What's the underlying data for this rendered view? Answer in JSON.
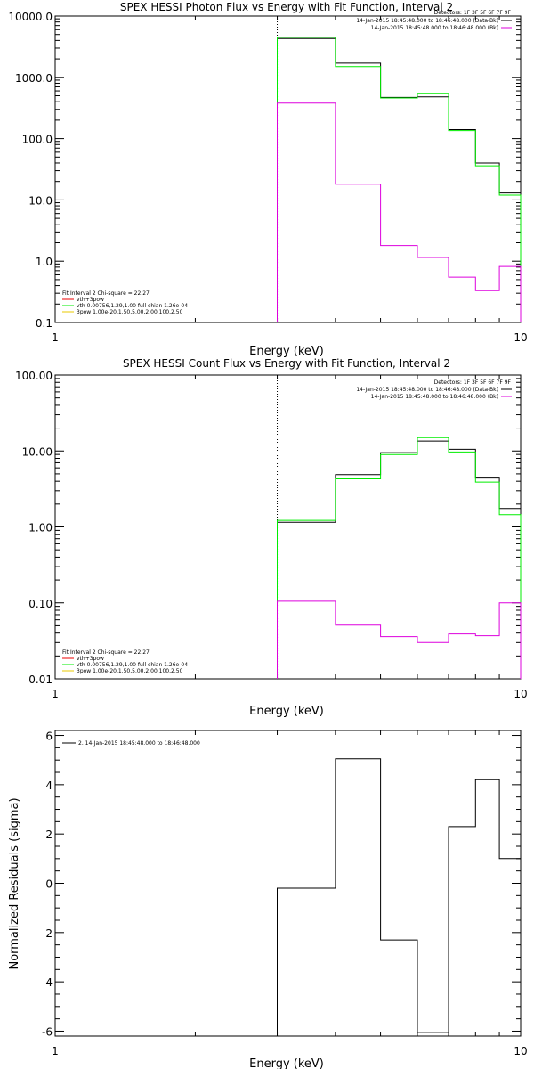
{
  "colors": {
    "black": "#000000",
    "green": "#00ee00",
    "magenta": "#dd00dd",
    "red": "#ee0000",
    "yellow": "#e8c800"
  },
  "chart_data": [
    {
      "type": "line",
      "title": "SPEX HESSI Photon Flux vs Energy with Fit Function, Interval 2",
      "xlabel": "Energy (keV)",
      "ylabel": "",
      "xscale": "log",
      "yscale": "log",
      "xlim": [
        1,
        10
      ],
      "ylim": [
        0.1,
        10000
      ],
      "xticklabels": [
        "1",
        "10"
      ],
      "yticks": [
        0.1,
        1,
        10,
        100,
        1000,
        10000
      ],
      "yticklabels": [
        "0.1",
        "1.0",
        "10.0",
        "100.0",
        "1000.0",
        "10000.0"
      ],
      "vline_x": 3,
      "legend_top": {
        "line1": "Detectors: 1F 3F 5F 6F 7F 9F",
        "entries": [
          {
            "text": "14-Jan-2015 18:45:48.000 to 18:46:48.000 (Data-Bk)",
            "color": "#000000"
          },
          {
            "text": "14-Jan-2015 18:45:48.000 to 18:46:48.000 (Bk)",
            "color": "#dd00dd"
          }
        ]
      },
      "legend_bottom": {
        "header": "Fit Interval 2   Chi-square = 22.27",
        "entries": [
          {
            "text": "vth+3pow",
            "color": "#ee0000"
          },
          {
            "text": "vth 0.00756,1.29,1.00  full chian 1.26e-04",
            "color": "#00ee00"
          },
          {
            "text": "3pow 1.00e-20,1.50,5.00,2.00,100,2.50",
            "color": "#e8c800"
          }
        ]
      },
      "series": [
        {
          "color": "#000000",
          "edges": [
            3,
            4,
            5,
            6,
            7,
            8,
            9,
            10
          ],
          "values": [
            4300,
            1700,
            470,
            480,
            140,
            40,
            13
          ]
        },
        {
          "color": "#00ee00",
          "edges": [
            3,
            4,
            5,
            6,
            7,
            8,
            9,
            10
          ],
          "values": [
            4500,
            1500,
            460,
            550,
            135,
            36,
            12
          ]
        },
        {
          "color": "#dd00dd",
          "edges": [
            3,
            4,
            5,
            6,
            7,
            8,
            9,
            10
          ],
          "values": [
            380,
            18,
            1.8,
            1.15,
            0.55,
            0.33,
            0.82
          ]
        }
      ]
    },
    {
      "type": "line",
      "title": "SPEX HESSI Count Flux vs Energy with Fit Function, Interval 2",
      "xlabel": "Energy (keV)",
      "ylabel": "",
      "xscale": "log",
      "yscale": "log",
      "xlim": [
        1,
        10
      ],
      "ylim": [
        0.01,
        100
      ],
      "xticklabels": [
        "1",
        "10"
      ],
      "yticks": [
        0.01,
        0.1,
        1,
        10,
        100
      ],
      "yticklabels": [
        "0.01",
        "0.10",
        "1.00",
        "10.00",
        "100.00"
      ],
      "vline_x": 3,
      "legend_top": {
        "line1": "Detectors: 1F 3F 5F 6F 7F 9F",
        "entries": [
          {
            "text": "14-Jan-2015 18:45:48.000 to 18:46:48.000 (Data-Bk)",
            "color": "#000000"
          },
          {
            "text": "14-Jan-2015 18:45:48.000 to 18:46:48.000 (Bk)",
            "color": "#dd00dd"
          }
        ]
      },
      "legend_bottom": {
        "header": "Fit Interval 2   Chi-square = 22.27",
        "entries": [
          {
            "text": "vth+3pow",
            "color": "#ee0000"
          },
          {
            "text": "vth 0.00756,1.29,1.00  full chian 1.26e-04",
            "color": "#00ee00"
          },
          {
            "text": "3pow 1.00e-20,1.50,5.00,2.00,100,2.50",
            "color": "#e8c800"
          }
        ]
      },
      "series": [
        {
          "color": "#000000",
          "edges": [
            3,
            4,
            5,
            6,
            7,
            8,
            9,
            10
          ],
          "values": [
            1.15,
            4.9,
            9.5,
            13.5,
            10.5,
            4.4,
            1.75
          ]
        },
        {
          "color": "#00ee00",
          "edges": [
            3,
            4,
            5,
            6,
            7,
            8,
            9,
            10
          ],
          "values": [
            1.22,
            4.3,
            9.0,
            15.0,
            9.7,
            3.9,
            1.45
          ]
        },
        {
          "color": "#dd00dd",
          "edges": [
            3,
            4,
            5,
            6,
            7,
            8,
            9,
            10
          ],
          "values": [
            0.105,
            0.051,
            0.036,
            0.03,
            0.039,
            0.037,
            0.1
          ]
        }
      ]
    },
    {
      "type": "line",
      "title": "",
      "xlabel": "Energy (keV)",
      "ylabel": "Normalized Residuals (sigma)",
      "xscale": "log",
      "yscale": "linear",
      "xlim": [
        1,
        10
      ],
      "ylim": [
        -6.2,
        6.2
      ],
      "xticklabels": [
        "1",
        "10"
      ],
      "yticks": [
        -6,
        -4,
        -2,
        0,
        2,
        4,
        6
      ],
      "yticklabels": [
        "-6",
        "-4",
        "-2",
        "0",
        "2",
        "4",
        "6"
      ],
      "legend_top": {
        "entries": [
          {
            "text": "2. 14-Jan-2015 18:45:48.000 to 18:46:48.000",
            "color": "#000000"
          }
        ]
      },
      "series": [
        {
          "color": "#000000",
          "edges": [
            3,
            4,
            5,
            6,
            7,
            8,
            9,
            10
          ],
          "values": [
            -0.2,
            5.05,
            -2.3,
            -6.05,
            2.3,
            4.2,
            1.0
          ]
        }
      ]
    }
  ]
}
